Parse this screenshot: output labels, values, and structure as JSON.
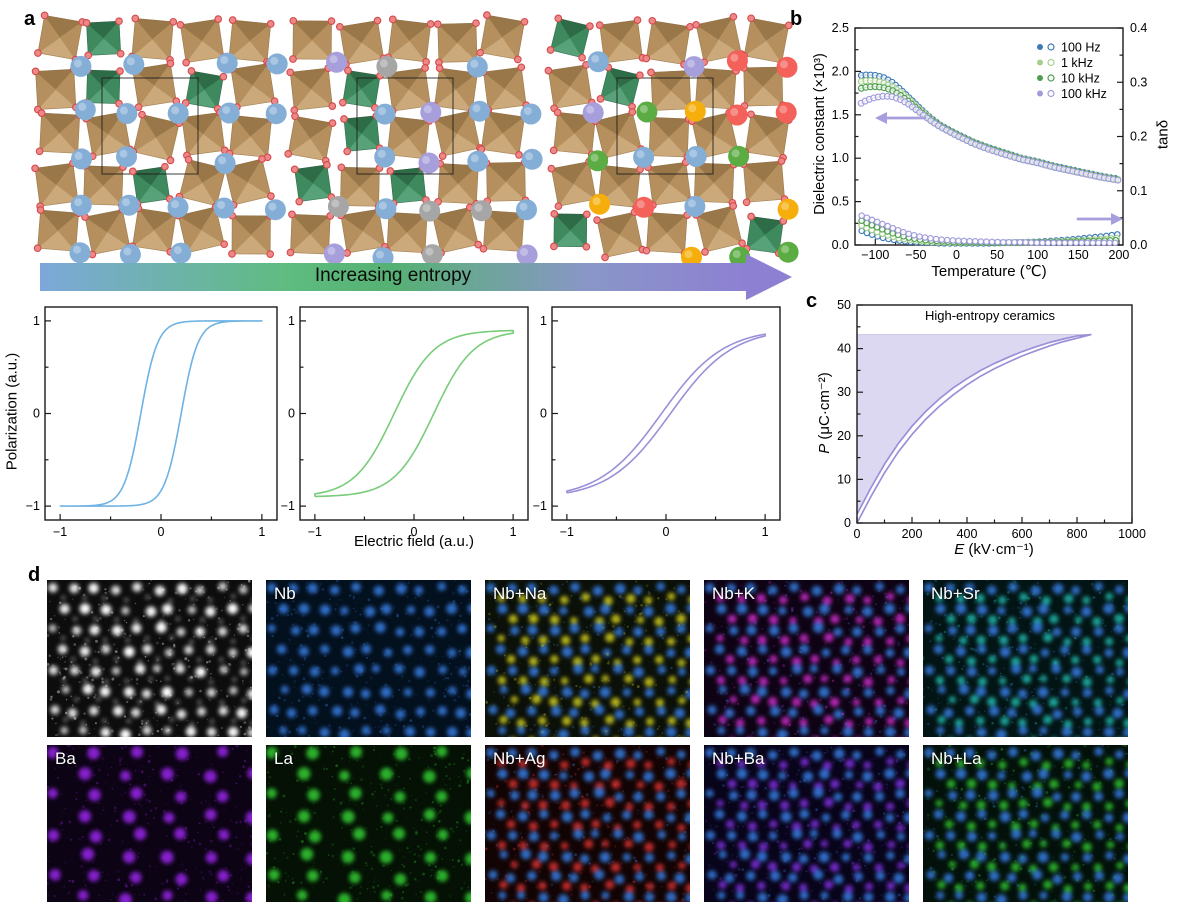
{
  "figure": {
    "panel_labels": {
      "a": "a",
      "b": "b",
      "c": "c",
      "d": "d"
    }
  },
  "panel_a": {
    "arrow_label": "Increasing entropy",
    "arrow_gradient": [
      "#7DA8DA",
      "#5FBC80",
      "#8D80D2"
    ],
    "octahedra": {
      "main": "#B5905E",
      "main_light": "#CBA97A",
      "main_dark": "#997748",
      "accent": "#3E8A5E",
      "accent_light": "#57A279",
      "accent_dark": "#2E6B47",
      "oxygen_fill": "#ED8888",
      "oxygen_stroke": "#D44A4A"
    },
    "structures": [
      {
        "cation_colors": [
          "#85AED6"
        ]
      },
      {
        "cation_colors": [
          "#85AED6",
          "#A79FDC",
          "#A6A6A6"
        ]
      },
      {
        "cation_colors": [
          "#85AED6",
          "#A79FDC",
          "#A6A6A6",
          "#F4605A",
          "#F5AE0C",
          "#5CAC44"
        ]
      }
    ]
  },
  "panel_d": {
    "maps": [
      {
        "label": "",
        "bg": "#0d0d0d",
        "primary": "#ffffff",
        "secondary": null,
        "sparse": false
      },
      {
        "label": "Nb",
        "bg": "#03101e",
        "primary": "#3272cf",
        "secondary": null,
        "sparse": false
      },
      {
        "label": "Nb+Na",
        "bg": "#0b1008",
        "primary": "#3272cf",
        "secondary": "#c9c61e",
        "sparse": false
      },
      {
        "label": "Nb+K",
        "bg": "#0e0314",
        "primary": "#3272cf",
        "secondary": "#c32bc3",
        "sparse": false
      },
      {
        "label": "Nb+Sr",
        "bg": "#031414",
        "primary": "#3272cf",
        "secondary": "#1fb3a7",
        "sparse": false
      },
      {
        "label": "Ba",
        "bg": "#0c0314",
        "primary": "#8b22d6",
        "secondary": null,
        "sparse": true
      },
      {
        "label": "La",
        "bg": "#041104",
        "primary": "#2eb82e",
        "secondary": null,
        "sparse": true
      },
      {
        "label": "Nb+Ag",
        "bg": "#120404",
        "primary": "#3272cf",
        "secondary": "#d03030",
        "sparse": false
      },
      {
        "label": "Nb+Ba",
        "bg": "#08041a",
        "primary": "#3272cf",
        "secondary": "#7a2fd6",
        "sparse": false
      },
      {
        "label": "Nb+La",
        "bg": "#03110a",
        "primary": "#3272cf",
        "secondary": "#2eb82e",
        "sparse": false
      }
    ]
  },
  "chart_data": [
    {
      "id": "dielectric_vs_temperature",
      "type": "line",
      "panel": "b",
      "xlabel": "Temperature (℃)",
      "ylabel": "Dielectric constant (×10³)",
      "y2label": "tanδ",
      "xlim": [
        -125,
        205
      ],
      "ylim": [
        0,
        2.5
      ],
      "y2lim": [
        0,
        0.4
      ],
      "xticks": [
        -100,
        -50,
        0,
        50,
        100,
        150,
        200
      ],
      "yticks": [
        0.0,
        0.5,
        1.0,
        1.5,
        2.0,
        2.5
      ],
      "y2ticks": [
        0.0,
        0.1,
        0.2,
        0.3,
        0.4
      ],
      "legend": [
        "100 Hz",
        "1 kHz",
        "10 kHz",
        "100 kHz"
      ],
      "legend_position": "top-right",
      "grid": false,
      "x": [
        -120,
        -110,
        -100,
        -90,
        -80,
        -70,
        -60,
        -50,
        -40,
        -30,
        -20,
        -10,
        0,
        20,
        40,
        60,
        80,
        100,
        120,
        140,
        160,
        180,
        200
      ],
      "series": [
        {
          "name": "100 Hz",
          "axis": "left",
          "color": "#3D7AB8",
          "values": [
            1.95,
            1.96,
            1.955,
            1.93,
            1.88,
            1.8,
            1.71,
            1.62,
            1.53,
            1.45,
            1.38,
            1.33,
            1.28,
            1.19,
            1.12,
            1.06,
            1.0,
            0.96,
            0.91,
            0.87,
            0.83,
            0.79,
            0.76
          ]
        },
        {
          "name": "1 kHz",
          "axis": "left",
          "color": "#A6CF8C",
          "values": [
            1.88,
            1.895,
            1.89,
            1.87,
            1.83,
            1.77,
            1.69,
            1.6,
            1.52,
            1.44,
            1.375,
            1.325,
            1.275,
            1.185,
            1.115,
            1.055,
            0.995,
            0.955,
            0.905,
            0.865,
            0.825,
            0.785,
            0.755
          ]
        },
        {
          "name": "10 kHz",
          "axis": "left",
          "color": "#4E9E4E",
          "values": [
            1.8,
            1.82,
            1.825,
            1.815,
            1.785,
            1.73,
            1.66,
            1.58,
            1.5,
            1.43,
            1.37,
            1.32,
            1.27,
            1.18,
            1.11,
            1.05,
            0.99,
            0.95,
            0.9,
            0.86,
            0.82,
            0.78,
            0.75
          ]
        },
        {
          "name": "100 kHz",
          "axis": "left",
          "color": "#A09BDC",
          "values": [
            1.62,
            1.67,
            1.7,
            1.715,
            1.71,
            1.68,
            1.63,
            1.56,
            1.49,
            1.42,
            1.36,
            1.31,
            1.26,
            1.17,
            1.1,
            1.04,
            0.985,
            0.945,
            0.895,
            0.855,
            0.815,
            0.775,
            0.745
          ]
        },
        {
          "name": "100 Hz tanδ",
          "axis": "right",
          "color": "#3D7AB8",
          "values": [
            0.028,
            0.022,
            0.017,
            0.013,
            0.01,
            0.008,
            0.006,
            0.005,
            0.004,
            0.004,
            0.003,
            0.003,
            0.003,
            0.003,
            0.003,
            0.004,
            0.005,
            0.006,
            0.008,
            0.01,
            0.013,
            0.016,
            0.02
          ]
        },
        {
          "name": "1 kHz tanδ",
          "axis": "right",
          "color": "#A6CF8C",
          "values": [
            0.038,
            0.031,
            0.025,
            0.02,
            0.016,
            0.012,
            0.01,
            0.008,
            0.006,
            0.005,
            0.005,
            0.004,
            0.004,
            0.004,
            0.004,
            0.004,
            0.005,
            0.005,
            0.006,
            0.008,
            0.009,
            0.011,
            0.013
          ]
        },
        {
          "name": "10 kHz tanδ",
          "axis": "right",
          "color": "#4E9E4E",
          "values": [
            0.047,
            0.04,
            0.034,
            0.028,
            0.022,
            0.018,
            0.014,
            0.011,
            0.009,
            0.008,
            0.007,
            0.006,
            0.005,
            0.005,
            0.004,
            0.004,
            0.004,
            0.005,
            0.005,
            0.006,
            0.007,
            0.008,
            0.009
          ]
        },
        {
          "name": "100 kHz tanδ",
          "axis": "right",
          "color": "#A09BDC",
          "values": [
            0.056,
            0.05,
            0.044,
            0.038,
            0.032,
            0.026,
            0.021,
            0.017,
            0.014,
            0.012,
            0.01,
            0.009,
            0.008,
            0.007,
            0.006,
            0.005,
            0.005,
            0.004,
            0.004,
            0.004,
            0.004,
            0.004,
            0.004
          ]
        }
      ],
      "annotations": [
        "arrow-left toward dielectric axis",
        "arrow-right toward tanδ axis"
      ],
      "arrow_color": "#A79FDD"
    },
    {
      "id": "pe_loop_high_entropy",
      "type": "line",
      "panel": "c",
      "label": "High-entropy ceramics",
      "xlabel_var": "E",
      "xlabel_units": " (kV·cm⁻¹)",
      "ylabel_var": "P",
      "ylabel_units": " (μC·cm⁻²)",
      "xlim": [
        0,
        1000
      ],
      "ylim": [
        0,
        50
      ],
      "xticks": [
        0,
        200,
        400,
        600,
        800,
        1000
      ],
      "yticks": [
        0,
        10,
        20,
        30,
        40,
        50
      ],
      "line_color": "#9A90D8",
      "fill_color": "#D9D4EF",
      "max_point": [
        850,
        43.2
      ],
      "charge": [
        [
          0,
          0
        ],
        [
          50,
          6
        ],
        [
          100,
          11.5
        ],
        [
          150,
          16.3
        ],
        [
          200,
          20.3
        ],
        [
          250,
          23.8
        ],
        [
          300,
          26.8
        ],
        [
          350,
          29.4
        ],
        [
          400,
          31.7
        ],
        [
          450,
          33.7
        ],
        [
          500,
          35.4
        ],
        [
          550,
          36.9
        ],
        [
          600,
          38.3
        ],
        [
          650,
          39.5
        ],
        [
          700,
          40.6
        ],
        [
          750,
          41.6
        ],
        [
          800,
          42.4
        ],
        [
          850,
          43.2
        ]
      ],
      "discharge": [
        [
          850,
          43.2
        ],
        [
          800,
          42.9
        ],
        [
          750,
          42.2
        ],
        [
          700,
          41.4
        ],
        [
          650,
          40.4
        ],
        [
          600,
          39.3
        ],
        [
          550,
          38.0
        ],
        [
          500,
          36.6
        ],
        [
          450,
          35.0
        ],
        [
          400,
          33.1
        ],
        [
          350,
          31.0
        ],
        [
          300,
          28.5
        ],
        [
          250,
          25.6
        ],
        [
          200,
          22.2
        ],
        [
          150,
          18.2
        ],
        [
          100,
          13.5
        ],
        [
          50,
          8.0
        ],
        [
          0,
          2.0
        ]
      ]
    },
    {
      "id": "pe_loops_schematic",
      "type": "line",
      "panel": "a",
      "xlabel": "Electric field (a.u.)",
      "ylabel": "Polarization (a.u.)",
      "xlim": [
        -1.15,
        1.15
      ],
      "ylim": [
        -1.15,
        1.15
      ],
      "xticks": [
        -1,
        0,
        1
      ],
      "yticks": [
        -1,
        0,
        1
      ],
      "loops": [
        {
          "name": "normal ferroelectric",
          "color": "#6FB3E3",
          "amplitude": 1.0,
          "coercive_field": 0.2,
          "steepness": 6.0,
          "saturation_polarization": 1.0,
          "remanent_polarization": 0.86
        },
        {
          "name": "relaxor-like",
          "color": "#79CC79",
          "amplitude": 0.9,
          "coercive_field": 0.2,
          "steepness": 2.5,
          "saturation_polarization": 0.88,
          "remanent_polarization": 0.42
        },
        {
          "name": "high-entropy slim loop",
          "color": "#9890D8",
          "amplitude": 0.92,
          "coercive_field": 0.045,
          "steepness": 1.6,
          "saturation_polarization": 0.85,
          "remanent_polarization": 0.06
        }
      ]
    }
  ]
}
